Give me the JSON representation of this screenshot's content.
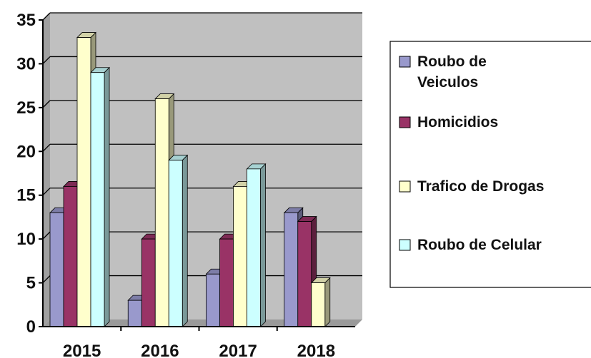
{
  "chart_data": {
    "type": "bar",
    "categories": [
      "2015",
      "2016",
      "2017",
      "2018"
    ],
    "series": [
      {
        "name": "Roubo de Veiculos",
        "values": [
          13,
          3,
          6,
          13
        ],
        "color": "#9999cc"
      },
      {
        "name": "Homicidios",
        "values": [
          16,
          10,
          10,
          12
        ],
        "color": "#993366"
      },
      {
        "name": "Trafico de Drogas",
        "values": [
          33,
          26,
          16,
          5
        ],
        "color": "#ffffcc"
      },
      {
        "name": "Roubo de Celular",
        "values": [
          29,
          19,
          18,
          0
        ],
        "color": "#ccffff"
      }
    ],
    "legend": [
      {
        "lines": [
          "Roubo de",
          "Veiculos"
        ],
        "color": "#9999cc"
      },
      {
        "lines": [
          "Homicidios"
        ],
        "color": "#993366"
      },
      {
        "lines": [
          "Trafico de Drogas"
        ],
        "color": "#ffffcc"
      },
      {
        "lines": [
          "Roubo de Celular"
        ],
        "color": "#ccffff"
      }
    ],
    "ylim": [
      0,
      35
    ],
    "yticks": [
      0,
      5,
      10,
      15,
      20,
      25,
      30,
      35
    ],
    "grid": true,
    "plot_background": "#c0c0c0",
    "legend_position": "right",
    "bar_style": "3d",
    "title": "",
    "xlabel": "",
    "ylabel": ""
  }
}
